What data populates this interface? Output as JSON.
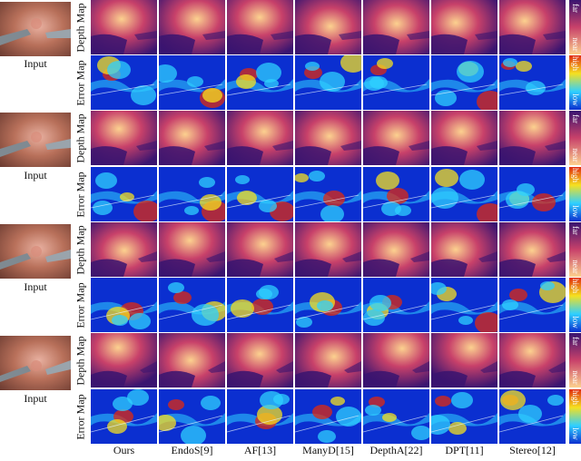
{
  "input_label": "Input",
  "row_labels": {
    "depth": "Depth Map",
    "error": "Error Map"
  },
  "colorbars": {
    "depth": {
      "top": "far",
      "bottom": "near"
    },
    "error": {
      "top": "high",
      "bottom": "low"
    }
  },
  "columns": [
    {
      "label": "Ours"
    },
    {
      "label": "EndoS[9]"
    },
    {
      "label": "AF[13]"
    },
    {
      "label": "ManyD[15]"
    },
    {
      "label": "DepthA[22]"
    },
    {
      "label": "DPT[11]"
    },
    {
      "label": "Stereo[12]"
    }
  ],
  "colors": {
    "depth_far": "#3a1470",
    "depth_mid": "#c8416a",
    "depth_near": "#fcd18f",
    "error_low": "#0b2fd0",
    "error_mid": "#2fd0ff",
    "error_high": "#e02a10",
    "tissue": "#b8705a"
  }
}
